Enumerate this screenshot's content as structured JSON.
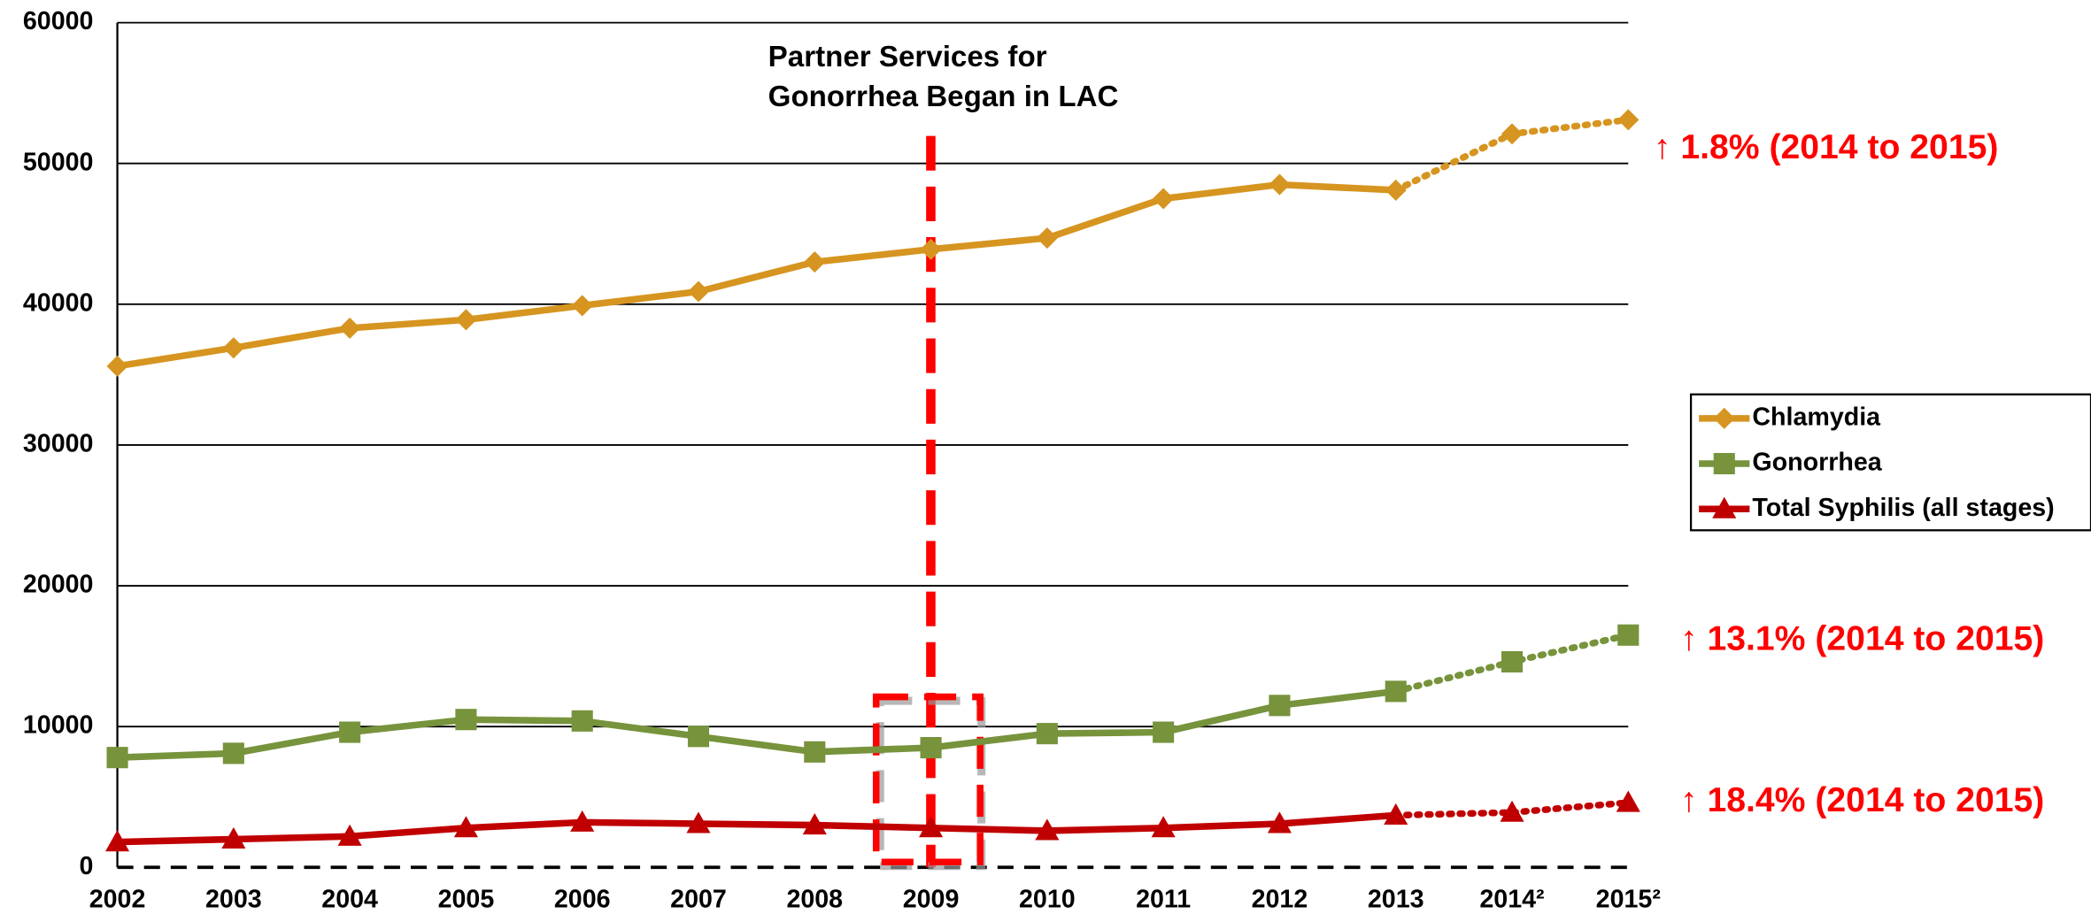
{
  "chart_data": {
    "type": "line",
    "annotation": [
      "Partner Services for",
      "Gonorrhea Began in LAC"
    ],
    "categories": [
      "2002",
      "2003",
      "2004",
      "2005",
      "2006",
      "2007",
      "2008",
      "2009",
      "2010",
      "2011",
      "2012",
      "2013",
      "2014²",
      "2015²"
    ],
    "dotted_from": 11,
    "ylim": [
      0,
      60000
    ],
    "yticks": [
      0,
      10000,
      20000,
      30000,
      40000,
      50000,
      60000
    ],
    "grid": true,
    "legend": "right",
    "series": [
      {
        "name": "Chlamydia",
        "color": "#d69520",
        "marker": "diamond",
        "values": [
          35600,
          36900,
          38300,
          38900,
          39900,
          40900,
          43000,
          43900,
          44700,
          47500,
          48500,
          48100,
          52100,
          53100
        ],
        "note": "↑ 1.8% (2014 to 2015)"
      },
      {
        "name": "Gonorrhea",
        "color": "#77933c",
        "marker": "square",
        "values": [
          7800,
          8100,
          9600,
          10500,
          10400,
          9300,
          8200,
          8500,
          9500,
          9600,
          11500,
          12500,
          14600,
          16500
        ],
        "note": "↑ 13.1% (2014 to 2015)"
      },
      {
        "name": "Total Syphilis (all stages)",
        "color": "#c00000",
        "marker": "triangle",
        "values": [
          1800,
          2000,
          2200,
          2800,
          3200,
          3100,
          3000,
          2800,
          2600,
          2800,
          3100,
          3700,
          3900,
          4600
        ],
        "note": "↑ 18.4% (2014 to 2015)"
      }
    ]
  }
}
